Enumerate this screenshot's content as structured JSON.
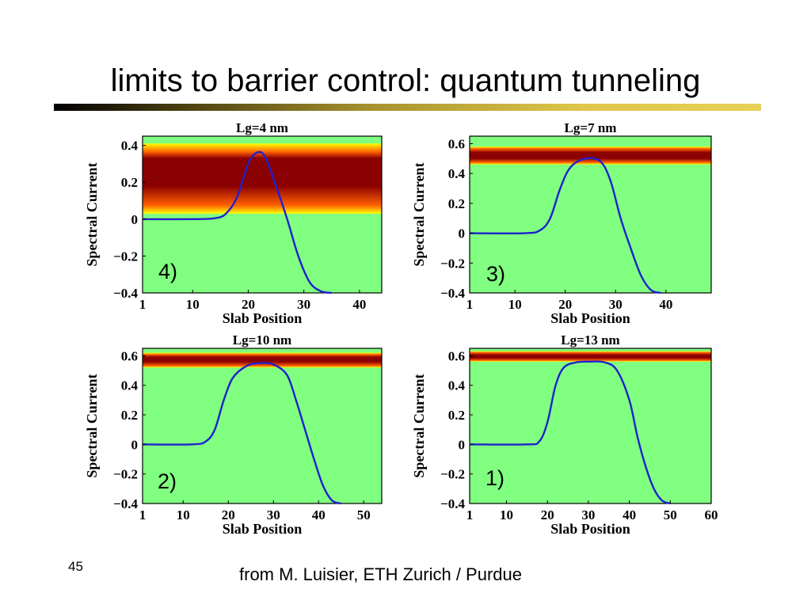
{
  "slide": {
    "title": "limits to barrier control:  quantum tunneling",
    "number": "45",
    "credit": "from M. Luisier, ETH Zurich / Purdue"
  },
  "colors": {
    "background_band": "#80ff80",
    "band_outer": "#ffff00",
    "band_mid": "#ff6000",
    "band_core": "#8b0000",
    "curve": "#2020d0",
    "title_rule": "#c8aa30"
  },
  "chart_data": [
    {
      "type": "line",
      "title": "Lg=4 nm",
      "panel_label": "4)",
      "xlabel": "Slab Position",
      "ylabel": "Spectral Current",
      "xlim": [
        1,
        44
      ],
      "ylim": [
        -0.4,
        0.45
      ],
      "xticks": [
        1,
        10,
        20,
        30,
        40
      ],
      "yticks": [
        -0.4,
        -0.2,
        0,
        0.2,
        0.4
      ],
      "ytick_labels": [
        "−0.4",
        "−0.2",
        "0",
        "0.2",
        "0.4"
      ],
      "band": {
        "low": 0.03,
        "high": 0.41,
        "core_low": 0.18,
        "core_high": 0.33
      },
      "series": [
        {
          "values": [
            [
              1,
              0
            ],
            [
              10,
              0
            ],
            [
              14,
              0.005
            ],
            [
              16,
              0.03
            ],
            [
              18,
              0.12
            ],
            [
              20,
              0.3
            ],
            [
              21.5,
              0.36
            ],
            [
              23,
              0.34
            ],
            [
              25,
              0.18
            ],
            [
              27,
              0
            ],
            [
              29,
              -0.2
            ],
            [
              31,
              -0.34
            ],
            [
              33,
              -0.39
            ],
            [
              35,
              -0.4
            ]
          ]
        }
      ]
    },
    {
      "type": "line",
      "title": "Lg=7 nm",
      "panel_label": "3)",
      "xlabel": "Slab Position",
      "ylabel": "Spectral Current",
      "xlim": [
        1,
        49
      ],
      "ylim": [
        -0.4,
        0.65
      ],
      "xticks": [
        1,
        10,
        20,
        30,
        40
      ],
      "yticks": [
        -0.4,
        -0.2,
        0,
        0.2,
        0.4,
        0.6
      ],
      "ytick_labels": [
        "−0.4",
        "−0.2",
        "0",
        "0.2",
        "0.4",
        "0.6"
      ],
      "band": {
        "low": 0.46,
        "high": 0.58,
        "core_low": 0.5,
        "core_high": 0.54
      },
      "series": [
        {
          "values": [
            [
              1,
              0
            ],
            [
              12,
              0
            ],
            [
              15,
              0.02
            ],
            [
              17,
              0.1
            ],
            [
              19,
              0.3
            ],
            [
              21,
              0.44
            ],
            [
              24,
              0.5
            ],
            [
              27,
              0.48
            ],
            [
              29,
              0.35
            ],
            [
              31,
              0.1
            ],
            [
              33,
              -0.1
            ],
            [
              35,
              -0.28
            ],
            [
              37,
              -0.38
            ],
            [
              39,
              -0.4
            ]
          ]
        }
      ]
    },
    {
      "type": "line",
      "title": "Lg=10 nm",
      "panel_label": "2)",
      "xlabel": "Slab Position",
      "ylabel": "Spectral Current",
      "xlim": [
        1,
        54
      ],
      "ylim": [
        -0.4,
        0.65
      ],
      "xticks": [
        1,
        10,
        20,
        30,
        40,
        50
      ],
      "yticks": [
        -0.4,
        -0.2,
        0,
        0.2,
        0.4,
        0.6
      ],
      "ytick_labels": [
        "−0.4",
        "−0.2",
        "0",
        "0.2",
        "0.4",
        "0.6"
      ],
      "band": {
        "low": 0.52,
        "high": 0.62,
        "core_low": 0.56,
        "core_high": 0.59
      },
      "series": [
        {
          "values": [
            [
              1,
              0
            ],
            [
              12,
              0
            ],
            [
              15,
              0.02
            ],
            [
              17,
              0.1
            ],
            [
              19,
              0.3
            ],
            [
              21,
              0.45
            ],
            [
              24,
              0.53
            ],
            [
              27,
              0.55
            ],
            [
              30,
              0.54
            ],
            [
              33,
              0.47
            ],
            [
              35,
              0.3
            ],
            [
              37,
              0.1
            ],
            [
              39,
              -0.1
            ],
            [
              41,
              -0.28
            ],
            [
              43,
              -0.38
            ],
            [
              45,
              -0.4
            ]
          ]
        }
      ]
    },
    {
      "type": "line",
      "title": "Lg=13 nm",
      "panel_label": "1)",
      "xlabel": "Slab Position",
      "ylabel": "Spectral Current",
      "xlim": [
        1,
        60
      ],
      "ylim": [
        -0.4,
        0.65
      ],
      "xticks": [
        1,
        10,
        20,
        30,
        40,
        50,
        60
      ],
      "yticks": [
        -0.4,
        -0.2,
        0,
        0.2,
        0.4,
        0.6
      ],
      "ytick_labels": [
        "−0.4",
        "−0.2",
        "0",
        "0.2",
        "0.4",
        "0.6"
      ],
      "band": {
        "low": 0.56,
        "high": 0.63,
        "core_low": 0.585,
        "core_high": 0.605
      },
      "series": [
        {
          "values": [
            [
              1,
              0
            ],
            [
              15,
              0
            ],
            [
              18,
              0.02
            ],
            [
              20,
              0.15
            ],
            [
              22,
              0.4
            ],
            [
              24,
              0.52
            ],
            [
              27,
              0.555
            ],
            [
              30,
              0.56
            ],
            [
              34,
              0.555
            ],
            [
              37,
              0.5
            ],
            [
              40,
              0.3
            ],
            [
              42,
              0.05
            ],
            [
              44,
              -0.15
            ],
            [
              46,
              -0.3
            ],
            [
              48,
              -0.38
            ],
            [
              50,
              -0.4
            ]
          ]
        }
      ]
    }
  ]
}
